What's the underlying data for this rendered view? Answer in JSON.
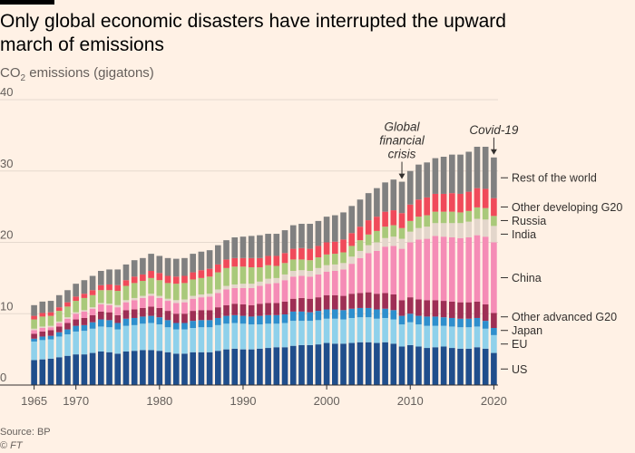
{
  "title": "Only global economic disasters have interrupted the upward march of emissions",
  "subtitle_prefix": "CO",
  "subtitle_sub": "2",
  "subtitle_suffix": " emissions (gigatons)",
  "source": "Source: BP",
  "credit_symbol": "©",
  "credit_name": "FT",
  "colors": {
    "background": "#fff1e5",
    "grid": "#e6d9ce",
    "axis": "#33302e"
  },
  "chart_data": {
    "type": "bar",
    "stacked": true,
    "ylim": [
      0,
      40
    ],
    "yticks": [
      "0",
      "10",
      "20",
      "30",
      "40"
    ],
    "xticks": [
      "1965",
      "1970",
      "1980",
      "1990",
      "2000",
      "2010",
      "2020"
    ],
    "categories": [
      "1965",
      "1966",
      "1967",
      "1968",
      "1969",
      "1970",
      "1971",
      "1972",
      "1973",
      "1974",
      "1975",
      "1976",
      "1977",
      "1978",
      "1979",
      "1980",
      "1981",
      "1982",
      "1983",
      "1984",
      "1985",
      "1986",
      "1987",
      "1988",
      "1989",
      "1990",
      "1991",
      "1992",
      "1993",
      "1994",
      "1995",
      "1996",
      "1997",
      "1998",
      "1999",
      "2000",
      "2001",
      "2002",
      "2003",
      "2004",
      "2005",
      "2006",
      "2007",
      "2008",
      "2009",
      "2010",
      "2011",
      "2012",
      "2013",
      "2014",
      "2015",
      "2016",
      "2017",
      "2018",
      "2019",
      "2020"
    ],
    "series": [
      {
        "name": "US",
        "color": "#1f4e8c",
        "values": [
          3.5,
          3.6,
          3.7,
          3.9,
          4.1,
          4.3,
          4.3,
          4.5,
          4.7,
          4.6,
          4.4,
          4.7,
          4.8,
          4.9,
          4.9,
          4.8,
          4.6,
          4.4,
          4.4,
          4.6,
          4.6,
          4.6,
          4.8,
          5.0,
          5.1,
          5.0,
          5.0,
          5.1,
          5.2,
          5.3,
          5.3,
          5.5,
          5.6,
          5.6,
          5.7,
          5.9,
          5.8,
          5.8,
          5.9,
          6.0,
          6.0,
          5.9,
          6.0,
          5.8,
          5.4,
          5.6,
          5.4,
          5.2,
          5.3,
          5.4,
          5.2,
          5.1,
          5.1,
          5.3,
          5.1,
          4.5
        ]
      },
      {
        "name": "EU",
        "color": "#8fd1eb",
        "values": [
          2.6,
          2.7,
          2.7,
          2.9,
          3.0,
          3.2,
          3.3,
          3.4,
          3.5,
          3.5,
          3.4,
          3.6,
          3.6,
          3.7,
          3.8,
          3.7,
          3.5,
          3.4,
          3.4,
          3.4,
          3.5,
          3.5,
          3.6,
          3.6,
          3.6,
          3.6,
          3.5,
          3.4,
          3.4,
          3.3,
          3.4,
          3.5,
          3.4,
          3.4,
          3.4,
          3.4,
          3.5,
          3.4,
          3.5,
          3.5,
          3.5,
          3.4,
          3.4,
          3.4,
          3.1,
          3.2,
          3.1,
          3.1,
          3.0,
          2.9,
          3.0,
          3.0,
          3.0,
          2.9,
          2.8,
          2.5
        ]
      },
      {
        "name": "Japan",
        "color": "#2e8fcd",
        "values": [
          0.4,
          0.5,
          0.5,
          0.6,
          0.7,
          0.8,
          0.8,
          0.9,
          1.0,
          1.0,
          0.9,
          1.0,
          1.0,
          1.0,
          1.0,
          1.0,
          1.0,
          0.9,
          0.9,
          1.0,
          1.0,
          1.0,
          1.0,
          1.1,
          1.1,
          1.1,
          1.1,
          1.2,
          1.2,
          1.2,
          1.2,
          1.3,
          1.3,
          1.2,
          1.3,
          1.3,
          1.3,
          1.3,
          1.3,
          1.3,
          1.3,
          1.3,
          1.3,
          1.3,
          1.2,
          1.2,
          1.2,
          1.3,
          1.3,
          1.2,
          1.2,
          1.2,
          1.2,
          1.2,
          1.1,
          1.0
        ]
      },
      {
        "name": "Other advanced G20",
        "color": "#9e2f55",
        "values": [
          0.7,
          0.7,
          0.8,
          0.8,
          0.9,
          0.9,
          1.0,
          1.0,
          1.1,
          1.1,
          1.1,
          1.2,
          1.2,
          1.2,
          1.3,
          1.3,
          1.3,
          1.3,
          1.3,
          1.4,
          1.4,
          1.4,
          1.5,
          1.5,
          1.6,
          1.6,
          1.6,
          1.7,
          1.7,
          1.7,
          1.8,
          1.8,
          1.9,
          1.9,
          1.9,
          2.0,
          2.0,
          2.0,
          2.1,
          2.1,
          2.2,
          2.2,
          2.2,
          2.2,
          2.2,
          2.3,
          2.3,
          2.3,
          2.3,
          2.3,
          2.3,
          2.3,
          2.3,
          2.3,
          2.3,
          2.1
        ]
      },
      {
        "name": "China",
        "color": "#f58cb6",
        "values": [
          0.5,
          0.5,
          0.4,
          0.5,
          0.6,
          0.8,
          0.9,
          0.9,
          1.0,
          1.0,
          1.1,
          1.1,
          1.3,
          1.4,
          1.5,
          1.4,
          1.4,
          1.5,
          1.6,
          1.7,
          1.8,
          1.9,
          2.0,
          2.2,
          2.2,
          2.3,
          2.4,
          2.5,
          2.7,
          2.8,
          3.0,
          3.1,
          3.1,
          3.1,
          3.2,
          3.3,
          3.4,
          3.7,
          4.2,
          4.9,
          5.5,
          6.0,
          6.5,
          6.8,
          7.2,
          7.7,
          8.4,
          8.6,
          9.0,
          9.0,
          9.0,
          9.0,
          9.1,
          9.3,
          9.5,
          9.9
        ]
      },
      {
        "name": "India",
        "color": "#e3d6cb",
        "values": [
          0.2,
          0.2,
          0.2,
          0.2,
          0.2,
          0.2,
          0.2,
          0.2,
          0.2,
          0.2,
          0.3,
          0.3,
          0.3,
          0.3,
          0.3,
          0.3,
          0.3,
          0.4,
          0.4,
          0.4,
          0.4,
          0.4,
          0.5,
          0.5,
          0.5,
          0.6,
          0.6,
          0.6,
          0.7,
          0.7,
          0.8,
          0.8,
          0.8,
          0.8,
          0.9,
          0.9,
          0.9,
          0.9,
          1.0,
          1.0,
          1.1,
          1.2,
          1.2,
          1.3,
          1.4,
          1.5,
          1.6,
          1.7,
          1.8,
          1.9,
          2.0,
          2.1,
          2.2,
          2.3,
          2.4,
          2.3
        ]
      },
      {
        "name": "Russia",
        "color": "#a9c97a",
        "values": [
          1.3,
          1.4,
          1.4,
          1.5,
          1.5,
          1.6,
          1.7,
          1.7,
          1.8,
          1.9,
          2.0,
          2.0,
          2.1,
          2.1,
          2.2,
          2.2,
          2.2,
          2.3,
          2.3,
          2.3,
          2.3,
          2.4,
          2.4,
          2.5,
          2.5,
          2.4,
          2.3,
          2.0,
          1.9,
          1.7,
          1.6,
          1.6,
          1.5,
          1.5,
          1.5,
          1.5,
          1.5,
          1.5,
          1.5,
          1.5,
          1.5,
          1.6,
          1.6,
          1.6,
          1.5,
          1.5,
          1.6,
          1.6,
          1.6,
          1.6,
          1.6,
          1.5,
          1.5,
          1.6,
          1.6,
          1.4
        ]
      },
      {
        "name": "Other developing G20",
        "color": "#f04a5a",
        "values": [
          0.5,
          0.5,
          0.5,
          0.5,
          0.6,
          0.6,
          0.6,
          0.7,
          0.7,
          0.8,
          0.8,
          0.8,
          0.9,
          0.9,
          1.0,
          1.0,
          1.0,
          1.0,
          1.0,
          1.0,
          1.1,
          1.1,
          1.1,
          1.2,
          1.2,
          1.2,
          1.3,
          1.3,
          1.3,
          1.4,
          1.4,
          1.5,
          1.6,
          1.6,
          1.6,
          1.7,
          1.7,
          1.8,
          1.8,
          1.9,
          2.0,
          2.0,
          2.1,
          2.1,
          2.1,
          2.3,
          2.4,
          2.5,
          2.5,
          2.5,
          2.6,
          2.6,
          2.7,
          2.7,
          2.7,
          2.5
        ]
      },
      {
        "name": "Rest of the world",
        "color": "#808080",
        "values": [
          1.5,
          1.6,
          1.6,
          1.7,
          1.7,
          1.8,
          1.9,
          2.0,
          2.0,
          2.1,
          2.2,
          2.2,
          2.3,
          2.3,
          2.4,
          2.4,
          2.5,
          2.5,
          2.5,
          2.6,
          2.6,
          2.6,
          2.7,
          2.7,
          2.9,
          3.0,
          3.1,
          3.2,
          3.1,
          3.1,
          3.2,
          3.3,
          3.4,
          3.5,
          3.5,
          3.6,
          3.7,
          3.8,
          3.8,
          3.8,
          3.8,
          4.0,
          4.1,
          4.3,
          4.4,
          4.7,
          4.9,
          4.9,
          5.0,
          5.2,
          5.4,
          5.5,
          5.6,
          5.8,
          5.9,
          5.7
        ]
      }
    ],
    "annotations": [
      {
        "text": [
          "Global",
          "financial",
          "crisis"
        ],
        "year": "2009"
      },
      {
        "text": [
          "Covid-19"
        ],
        "year": "2020"
      }
    ]
  }
}
